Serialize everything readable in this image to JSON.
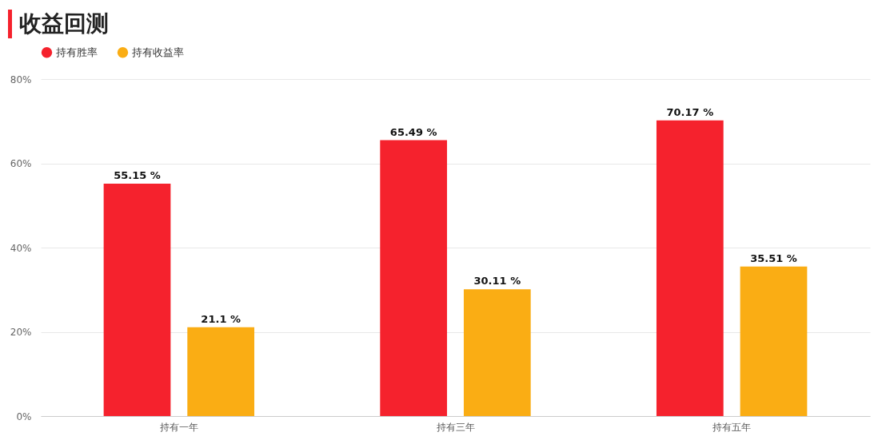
{
  "chart_data": {
    "type": "bar",
    "title": "收益回测",
    "categories": [
      "持有一年",
      "持有三年",
      "持有五年"
    ],
    "series": [
      {
        "name": "持有胜率",
        "color": "#f5222d",
        "values": [
          55.15,
          65.49,
          70.17
        ],
        "value_labels": [
          "55.15 %",
          "65.49 %",
          "70.17 %"
        ]
      },
      {
        "name": "持有收益率",
        "color": "#faad14",
        "values": [
          21.1,
          30.11,
          35.51
        ],
        "value_labels": [
          "21.1 %",
          "30.11 %",
          "35.51 %"
        ]
      }
    ],
    "ylim": [
      0,
      80
    ],
    "yticks": [
      {
        "value": 0,
        "label": "0%"
      },
      {
        "value": 20,
        "label": "20%"
      },
      {
        "value": 40,
        "label": "40%"
      },
      {
        "value": 60,
        "label": "60%"
      },
      {
        "value": 80,
        "label": "80%"
      }
    ],
    "grid": "y",
    "legend": "top left"
  }
}
